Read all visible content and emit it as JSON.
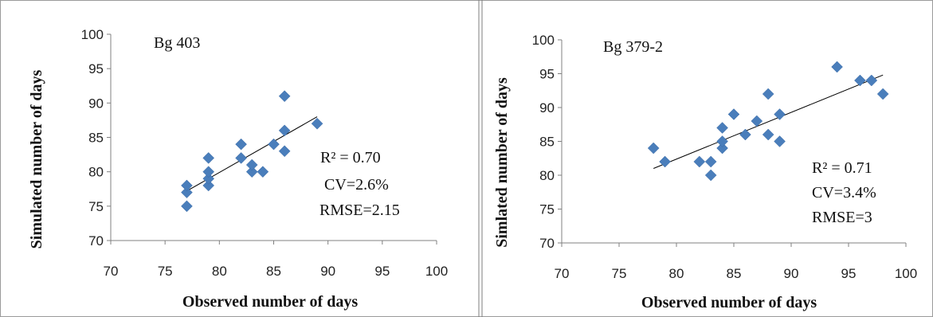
{
  "chart_data": [
    {
      "type": "scatter",
      "title": "Bg 403",
      "xlabel": "Observed number of days",
      "ylabel": "Simulated number of days",
      "xlim": [
        70,
        100
      ],
      "ylim": [
        70,
        100
      ],
      "xticks": [
        "70",
        "75",
        "80",
        "85",
        "90",
        "95",
        "100"
      ],
      "yticks": [
        "70",
        "75",
        "80",
        "85",
        "90",
        "95",
        "100"
      ],
      "points": [
        [
          77,
          75
        ],
        [
          77,
          77
        ],
        [
          77,
          78
        ],
        [
          79,
          78
        ],
        [
          79,
          79
        ],
        [
          79,
          80
        ],
        [
          79,
          82
        ],
        [
          82,
          82
        ],
        [
          82,
          84
        ],
        [
          83,
          80
        ],
        [
          83,
          81
        ],
        [
          84,
          80
        ],
        [
          85,
          84
        ],
        [
          86,
          83
        ],
        [
          86,
          86
        ],
        [
          86,
          91
        ],
        [
          89,
          87
        ]
      ],
      "trendline": {
        "from": [
          77,
          77.2
        ],
        "to": [
          89,
          88
        ]
      },
      "annotations": [
        "R² = 0.70",
        "CV=2.6%",
        "RMSE=2.15"
      ],
      "point_color": "#4a7ebb"
    },
    {
      "type": "scatter",
      "title": "Bg 379-2",
      "xlabel": "Observed number of days",
      "ylabel": "Simlated number of days",
      "xlim": [
        70,
        100
      ],
      "ylim": [
        70,
        100
      ],
      "xticks": [
        "70",
        "75",
        "80",
        "85",
        "90",
        "95",
        "100"
      ],
      "yticks": [
        "70",
        "75",
        "80",
        "85",
        "90",
        "95",
        "100"
      ],
      "points": [
        [
          78,
          84
        ],
        [
          79,
          82
        ],
        [
          82,
          82
        ],
        [
          83,
          80
        ],
        [
          83,
          82
        ],
        [
          84,
          84
        ],
        [
          84,
          85
        ],
        [
          84,
          87
        ],
        [
          85,
          89
        ],
        [
          86,
          86
        ],
        [
          87,
          88
        ],
        [
          88,
          86
        ],
        [
          88,
          92
        ],
        [
          89,
          85
        ],
        [
          89,
          89
        ],
        [
          94,
          96
        ],
        [
          96,
          94
        ],
        [
          97,
          94
        ],
        [
          98,
          92
        ]
      ],
      "trendline": {
        "from": [
          78,
          81
        ],
        "to": [
          98,
          94.8
        ]
      },
      "annotations": [
        "R² = 0.71",
        "CV=3.4%",
        "RMSE=3"
      ],
      "point_color": "#4a7ebb"
    }
  ]
}
